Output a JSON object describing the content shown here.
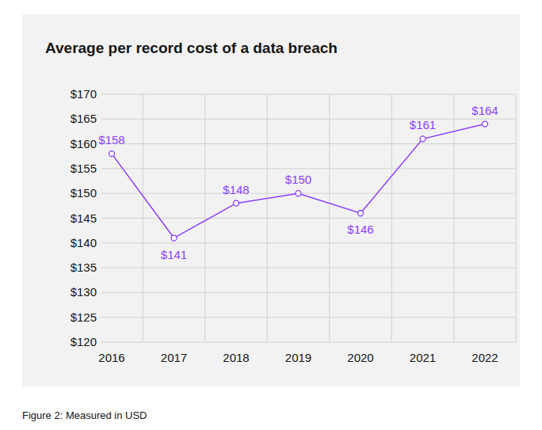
{
  "chart_data": {
    "type": "line",
    "title": "Average per record cost of a data breach",
    "caption": "Figure 2: Measured in USD",
    "categories": [
      "2016",
      "2017",
      "2018",
      "2019",
      "2020",
      "2021",
      "2022"
    ],
    "values": [
      158,
      141,
      148,
      150,
      146,
      161,
      164
    ],
    "value_labels": [
      "$158",
      "$141",
      "$148",
      "$150",
      "$146",
      "$161",
      "$164"
    ],
    "color": "#8a3ffc",
    "marker": "circle",
    "line_style": "solid",
    "ylim": [
      120,
      170
    ],
    "yticks": [
      {
        "value": 120,
        "label": "$120"
      },
      {
        "value": 125,
        "label": "$125"
      },
      {
        "value": 130,
        "label": "$130"
      },
      {
        "value": 135,
        "label": "$135"
      },
      {
        "value": 140,
        "label": "$140"
      },
      {
        "value": 145,
        "label": "$145"
      },
      {
        "value": 150,
        "label": "$150"
      },
      {
        "value": 155,
        "label": "$155"
      },
      {
        "value": 160,
        "label": "$160"
      },
      {
        "value": 165,
        "label": "$165"
      },
      {
        "value": 170,
        "label": "$170"
      }
    ],
    "grid": true,
    "data_labels": true
  }
}
